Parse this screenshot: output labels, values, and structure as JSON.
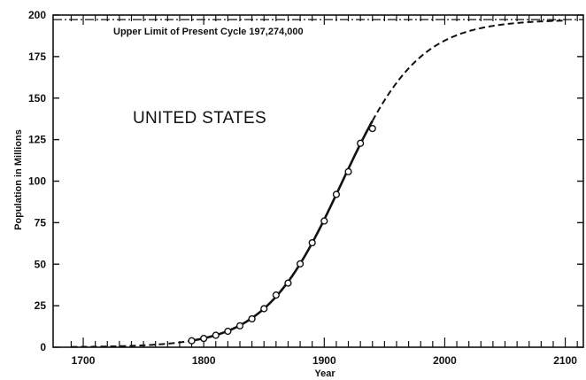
{
  "chart_data": {
    "type": "line",
    "title": "",
    "region_label": "UNITED STATES",
    "xlabel": "Year",
    "ylabel": "Population in Millions",
    "xlim": [
      1675,
      2115
    ],
    "ylim": [
      0,
      200
    ],
    "x_ticks": [
      1700,
      1800,
      1900,
      2000,
      2100
    ],
    "y_ticks": [
      0,
      25,
      50,
      75,
      100,
      125,
      150,
      175,
      200
    ],
    "grid": false,
    "upper_limit": {
      "value": 197.274,
      "label": "Upper Limit of Present Cycle 197,274,000"
    },
    "logistic": {
      "fitted_solid_range": [
        1790,
        1940
      ],
      "dashed_back_range": [
        1690,
        1790
      ],
      "dashed_forward_range": [
        1940,
        2100
      ]
    },
    "series": [
      {
        "style": "observed points",
        "x": [
          1790,
          1800,
          1810,
          1820,
          1830,
          1840,
          1850,
          1860,
          1870,
          1880,
          1890,
          1900,
          1910,
          1920,
          1930,
          1940
        ],
        "y": [
          3.9,
          5.3,
          7.2,
          9.6,
          12.9,
          17.1,
          23.2,
          31.4,
          38.6,
          50.2,
          62.9,
          76.0,
          92.0,
          105.7,
          122.8,
          131.7
        ]
      }
    ]
  }
}
